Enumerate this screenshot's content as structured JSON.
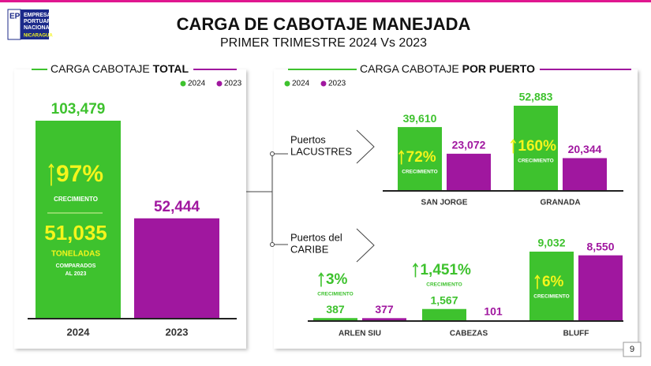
{
  "header": {
    "logo": [
      "EPN",
      "EMPRESA",
      "PORTUARIA",
      "NACIONAL",
      "NICARAGUA"
    ],
    "title": "CARGA DE CABOTAJE MANEJADA",
    "subtitle": "PRIMER TRIMESTRE 2024 Vs 2023"
  },
  "chart_data": [
    {
      "type": "bar",
      "title": "CARGA CABOTAJE",
      "title_bold": "TOTAL",
      "categories": [
        "2024",
        "2023"
      ],
      "series": [
        {
          "name": "2024",
          "color": "#3ec22e",
          "values": [
            103479,
            null
          ],
          "value_labels": [
            "103,479",
            null
          ]
        },
        {
          "name": "2023",
          "color": "#a0179f",
          "values": [
            null,
            52444
          ],
          "value_labels": [
            null,
            "52,444"
          ]
        }
      ],
      "annotations": {
        "growth": "97%",
        "growth_label": "CRECIMIENTO",
        "difference": "51,035",
        "unit": "TONELADAS",
        "note": [
          "COMPARADOS",
          "AL 2023"
        ]
      }
    },
    {
      "type": "bar",
      "title": "CARGA CABOTAJE",
      "title_bold": "POR PUERTO",
      "group": [
        "Puertos",
        "LACUSTRES"
      ],
      "categories": [
        "SAN JORGE",
        "GRANADA"
      ],
      "series": [
        {
          "name": "2024",
          "color": "#3ec22e",
          "values": [
            39610,
            52883
          ],
          "value_labels": [
            "39,610",
            "52,883"
          ]
        },
        {
          "name": "2023",
          "color": "#a0179f",
          "values": [
            23072,
            20344
          ],
          "value_labels": [
            "23,072",
            "20,344"
          ]
        }
      ],
      "growth": [
        "72%",
        "160%"
      ],
      "growth_label": "CRECIMIENTO"
    },
    {
      "type": "bar",
      "group": [
        "Puertos del",
        "CARIBE"
      ],
      "categories": [
        "ARLEN SIU",
        "CABEZAS",
        "BLUFF"
      ],
      "series": [
        {
          "color": "#3ec22e",
          "values": [
            387,
            1567,
            9032
          ],
          "value_labels": [
            "387",
            "1,567",
            "9,032"
          ]
        },
        {
          "color": "#a0179f",
          "values": [
            377,
            101,
            8550
          ],
          "value_labels": [
            "377",
            "101",
            "8,550"
          ]
        }
      ],
      "growth": [
        "3%",
        "1,451%",
        "6%"
      ],
      "growth_label": "CRECIMIENTO"
    }
  ],
  "page_number": "9"
}
